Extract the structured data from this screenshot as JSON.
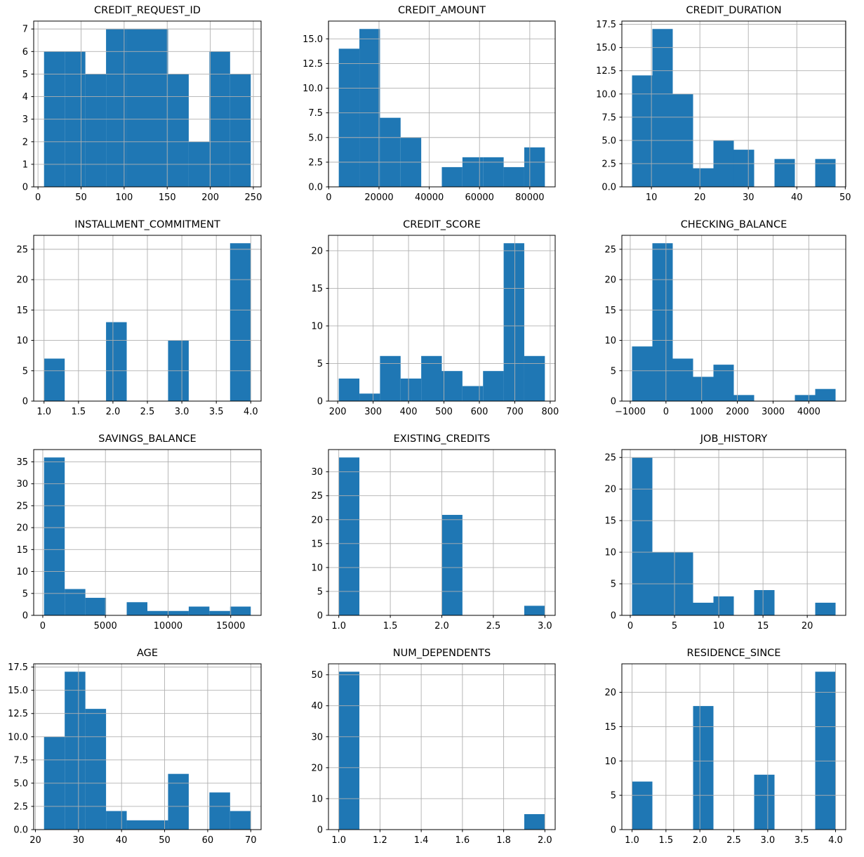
{
  "figure": {
    "rows": 4,
    "cols": 3,
    "background": "#ffffff",
    "total_sample_size": 56
  },
  "style": {
    "bar_color": "#1f77b4",
    "grid_color": "#b0b0b0",
    "spine_color": "#000000",
    "text_color": "#000000"
  },
  "chart_data": [
    {
      "type": "bar",
      "subtype": "histogram",
      "title": "CREDIT_REQUEST_ID",
      "bin_edges": [
        7,
        31,
        55,
        79,
        103,
        127,
        151,
        175,
        199,
        223,
        247
      ],
      "counts": [
        6,
        6,
        5,
        7,
        7,
        7,
        5,
        2,
        6,
        5
      ],
      "xlim": [
        -5,
        259
      ],
      "ylim": [
        0,
        7.35
      ],
      "x_tick_values": [
        0,
        50,
        100,
        150,
        200,
        250
      ],
      "x_tick_labels": [
        "0",
        "50",
        "100",
        "150",
        "200",
        "250"
      ],
      "y_tick_values": [
        0,
        1,
        2,
        3,
        4,
        5,
        6,
        7
      ],
      "y_tick_labels": [
        "0",
        "1",
        "2",
        "3",
        "4",
        "5",
        "6",
        "7"
      ],
      "grid": true
    },
    {
      "type": "bar",
      "subtype": "histogram",
      "title": "CREDIT_AMOUNT",
      "bin_edges": [
        4000,
        12200,
        20400,
        28600,
        36800,
        45000,
        53200,
        61400,
        69600,
        77800,
        86000
      ],
      "counts": [
        14,
        16,
        7,
        5,
        0,
        2,
        3,
        3,
        2,
        4
      ],
      "xlim": [
        -100,
        90100
      ],
      "ylim": [
        0,
        16.8
      ],
      "x_tick_values": [
        0,
        20000,
        40000,
        60000,
        80000
      ],
      "x_tick_labels": [
        "0",
        "20000",
        "40000",
        "60000",
        "80000"
      ],
      "y_tick_values": [
        0,
        2.5,
        5,
        7.5,
        10,
        12.5,
        15
      ],
      "y_tick_labels": [
        "0.0",
        "2.5",
        "5.0",
        "7.5",
        "10.0",
        "12.5",
        "15.0"
      ],
      "grid": true
    },
    {
      "type": "bar",
      "subtype": "histogram",
      "title": "CREDIT_DURATION",
      "bin_edges": [
        6,
        10.2,
        14.4,
        18.6,
        22.8,
        27,
        31.2,
        35.4,
        39.6,
        43.8,
        48
      ],
      "counts": [
        12,
        17,
        10,
        2,
        5,
        4,
        0,
        3,
        0,
        3
      ],
      "xlim": [
        3.9,
        50.1
      ],
      "ylim": [
        0,
        17.85
      ],
      "x_tick_values": [
        10,
        20,
        30,
        40,
        50
      ],
      "x_tick_labels": [
        "10",
        "20",
        "30",
        "40",
        "50"
      ],
      "y_tick_values": [
        0,
        2.5,
        5,
        7.5,
        10,
        12.5,
        15,
        17.5
      ],
      "y_tick_labels": [
        "0.0",
        "2.5",
        "5.0",
        "7.5",
        "10.0",
        "12.5",
        "15.0",
        "17.5"
      ],
      "grid": true
    },
    {
      "type": "bar",
      "subtype": "histogram",
      "title": "INSTALLMENT_COMMITMENT",
      "bin_edges": [
        1,
        1.3,
        1.6,
        1.9,
        2.2,
        2.5,
        2.8,
        3.1,
        3.4,
        3.7,
        4
      ],
      "counts": [
        7,
        0,
        0,
        13,
        0,
        0,
        10,
        0,
        0,
        26
      ],
      "xlim": [
        0.85,
        4.15
      ],
      "ylim": [
        0,
        27.3
      ],
      "x_tick_values": [
        1,
        1.5,
        2,
        2.5,
        3,
        3.5,
        4
      ],
      "x_tick_labels": [
        "1.0",
        "1.5",
        "2.0",
        "2.5",
        "3.0",
        "3.5",
        "4.0"
      ],
      "y_tick_values": [
        0,
        5,
        10,
        15,
        20,
        25
      ],
      "y_tick_labels": [
        "0",
        "5",
        "10",
        "15",
        "20",
        "25"
      ],
      "grid": true
    },
    {
      "type": "bar",
      "subtype": "histogram",
      "title": "CREDIT_SCORE",
      "bin_edges": [
        203,
        261.2,
        319.4,
        377.6,
        435.8,
        494,
        552.2,
        610.4,
        668.6,
        726.8,
        785
      ],
      "counts": [
        3,
        1,
        6,
        3,
        6,
        4,
        2,
        4,
        21,
        6
      ],
      "xlim": [
        173.9,
        814.1
      ],
      "ylim": [
        0,
        22.05
      ],
      "x_tick_values": [
        200,
        300,
        400,
        500,
        600,
        700,
        800
      ],
      "x_tick_labels": [
        "200",
        "300",
        "400",
        "500",
        "600",
        "700",
        "800"
      ],
      "y_tick_values": [
        0,
        5,
        10,
        15,
        20
      ],
      "y_tick_labels": [
        "0",
        "5",
        "10",
        "15",
        "20"
      ],
      "grid": true
    },
    {
      "type": "bar",
      "subtype": "histogram",
      "title": "CHECKING_BALANCE",
      "bin_edges": [
        -950,
        -380,
        190,
        760,
        1330,
        1900,
        2470,
        3040,
        3610,
        4180,
        4750
      ],
      "counts": [
        9,
        26,
        7,
        4,
        6,
        1,
        0,
        0,
        1,
        2
      ],
      "xlim": [
        -1235,
        5035
      ],
      "ylim": [
        0,
        27.3
      ],
      "x_tick_values": [
        -1000,
        0,
        1000,
        2000,
        3000,
        4000
      ],
      "x_tick_labels": [
        "−1000",
        "0",
        "1000",
        "2000",
        "3000",
        "4000"
      ],
      "y_tick_values": [
        0,
        5,
        10,
        15,
        20,
        25
      ],
      "y_tick_labels": [
        "0",
        "5",
        "10",
        "15",
        "20",
        "25"
      ],
      "grid": true
    },
    {
      "type": "bar",
      "subtype": "histogram",
      "title": "SAVINGS_BALANCE",
      "bin_edges": [
        100,
        1750,
        3400,
        5050,
        6700,
        8350,
        10000,
        11650,
        13300,
        14950,
        16600
      ],
      "counts": [
        36,
        6,
        4,
        0,
        3,
        1,
        1,
        2,
        1,
        2
      ],
      "xlim": [
        -725,
        17425
      ],
      "ylim": [
        0,
        37.8
      ],
      "x_tick_values": [
        0,
        5000,
        10000,
        15000
      ],
      "x_tick_labels": [
        "0",
        "5000",
        "10000",
        "15000"
      ],
      "y_tick_values": [
        0,
        5,
        10,
        15,
        20,
        25,
        30,
        35
      ],
      "y_tick_labels": [
        "0",
        "5",
        "10",
        "15",
        "20",
        "25",
        "30",
        "35"
      ],
      "grid": true
    },
    {
      "type": "bar",
      "subtype": "histogram",
      "title": "EXISTING_CREDITS",
      "bin_edges": [
        1,
        1.2,
        1.4,
        1.6,
        1.8,
        2,
        2.2,
        2.4,
        2.6,
        2.8,
        3
      ],
      "counts": [
        33,
        0,
        0,
        0,
        0,
        21,
        0,
        0,
        0,
        2
      ],
      "xlim": [
        0.9,
        3.1
      ],
      "ylim": [
        0,
        34.65
      ],
      "x_tick_values": [
        1,
        1.5,
        2,
        2.5,
        3
      ],
      "x_tick_labels": [
        "1.0",
        "1.5",
        "2.0",
        "2.5",
        "3.0"
      ],
      "y_tick_values": [
        0,
        5,
        10,
        15,
        20,
        25,
        30
      ],
      "y_tick_labels": [
        "0",
        "5",
        "10",
        "15",
        "20",
        "25",
        "30"
      ],
      "grid": true
    },
    {
      "type": "bar",
      "subtype": "histogram",
      "title": "JOB_HISTORY",
      "bin_edges": [
        0.2,
        2.5,
        4.8,
        7.1,
        9.4,
        11.7,
        14,
        16.3,
        18.6,
        20.9,
        23.2
      ],
      "counts": [
        25,
        10,
        10,
        2,
        3,
        0,
        4,
        0,
        0,
        2
      ],
      "xlim": [
        -0.95,
        24.35
      ],
      "ylim": [
        0,
        26.25
      ],
      "x_tick_values": [
        0,
        5,
        10,
        15,
        20
      ],
      "x_tick_labels": [
        "0",
        "5",
        "10",
        "15",
        "20"
      ],
      "y_tick_values": [
        0,
        5,
        10,
        15,
        20,
        25
      ],
      "y_tick_labels": [
        "0",
        "5",
        "10",
        "15",
        "20",
        "25"
      ],
      "grid": true
    },
    {
      "type": "bar",
      "subtype": "histogram",
      "title": "AGE",
      "bin_edges": [
        22,
        26.8,
        31.6,
        36.4,
        41.2,
        46,
        50.8,
        55.6,
        60.4,
        65.2,
        70
      ],
      "counts": [
        10,
        17,
        13,
        2,
        1,
        1,
        6,
        0,
        4,
        2
      ],
      "xlim": [
        19.6,
        72.4
      ],
      "ylim": [
        0,
        17.85
      ],
      "x_tick_values": [
        20,
        30,
        40,
        50,
        60,
        70
      ],
      "x_tick_labels": [
        "20",
        "30",
        "40",
        "50",
        "60",
        "70"
      ],
      "y_tick_values": [
        0,
        2.5,
        5,
        7.5,
        10,
        12.5,
        15,
        17.5
      ],
      "y_tick_labels": [
        "0.0",
        "2.5",
        "5.0",
        "7.5",
        "10.0",
        "12.5",
        "15.0",
        "17.5"
      ],
      "grid": true
    },
    {
      "type": "bar",
      "subtype": "histogram",
      "title": "NUM_DEPENDENTS",
      "bin_edges": [
        1,
        1.1,
        1.2,
        1.3,
        1.4,
        1.5,
        1.6,
        1.7,
        1.8,
        1.9,
        2
      ],
      "counts": [
        51,
        0,
        0,
        0,
        0,
        0,
        0,
        0,
        0,
        5
      ],
      "xlim": [
        0.95,
        2.05
      ],
      "ylim": [
        0,
        53.55
      ],
      "x_tick_values": [
        1,
        1.2,
        1.4,
        1.6,
        1.8,
        2
      ],
      "x_tick_labels": [
        "1.0",
        "1.2",
        "1.4",
        "1.6",
        "1.8",
        "2.0"
      ],
      "y_tick_values": [
        0,
        10,
        20,
        30,
        40,
        50
      ],
      "y_tick_labels": [
        "0",
        "10",
        "20",
        "30",
        "40",
        "50"
      ],
      "grid": true
    },
    {
      "type": "bar",
      "subtype": "histogram",
      "title": "RESIDENCE_SINCE",
      "bin_edges": [
        1,
        1.3,
        1.6,
        1.9,
        2.2,
        2.5,
        2.8,
        3.1,
        3.4,
        3.7,
        4
      ],
      "counts": [
        7,
        0,
        0,
        18,
        0,
        0,
        8,
        0,
        0,
        23
      ],
      "xlim": [
        0.85,
        4.15
      ],
      "ylim": [
        0,
        24.15
      ],
      "x_tick_values": [
        1,
        1.5,
        2,
        2.5,
        3,
        3.5,
        4
      ],
      "x_tick_labels": [
        "1.0",
        "1.5",
        "2.0",
        "2.5",
        "3.0",
        "3.5",
        "4.0"
      ],
      "y_tick_values": [
        0,
        5,
        10,
        15,
        20
      ],
      "y_tick_labels": [
        "0",
        "5",
        "10",
        "15",
        "20"
      ],
      "grid": true
    }
  ]
}
